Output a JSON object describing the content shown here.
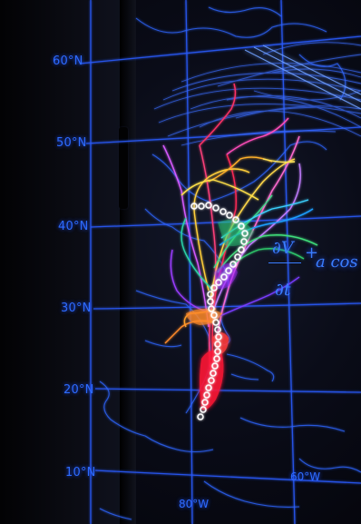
{
  "latitude_labels": [
    "60°N",
    "50°N",
    "40°N",
    "30°N",
    "20°N",
    "10°N"
  ],
  "longitude_labels": [
    "80°W",
    "60°W"
  ],
  "equation_fragments": {
    "numerator": "∂V",
    "denominator": "∂t",
    "plus": "+",
    "term": "a cos"
  },
  "colors": {
    "grid": "#2a5cff",
    "coastline": "#2f66ff",
    "track": "#ffffff",
    "background": "#05060d"
  }
}
